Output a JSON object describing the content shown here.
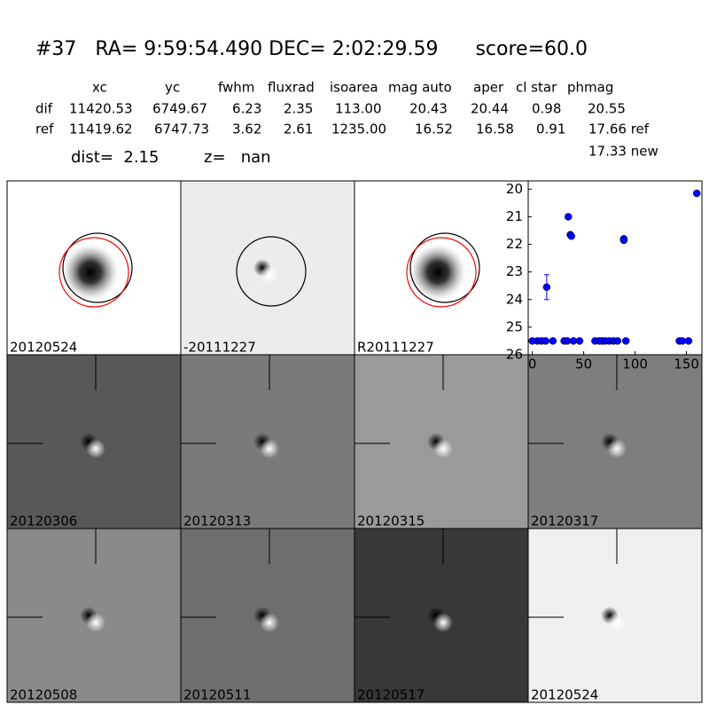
{
  "header": {
    "title": "#37   RA= 9:59:54.490 DEC= 2:02:29.59      score=60.0",
    "columns": [
      "xc",
      "yc",
      "fwhm",
      "fluxrad",
      "isoarea",
      "mag auto",
      "aper",
      "cl star",
      "phmag"
    ],
    "rows": [
      {
        "label": "dif",
        "cells": [
          "11420.53",
          "6749.67",
          "6.23",
          "2.35",
          "113.00",
          "20.43",
          "20.44",
          "0.98",
          "20.55"
        ]
      },
      {
        "label": "ref",
        "cells": [
          "11419.62",
          "6747.73",
          "3.62",
          "2.61",
          "1235.00",
          "16.52",
          "16.58",
          "0.91",
          "17.66 ref"
        ]
      }
    ],
    "extra": "17.33 new",
    "dist": "dist=  2.15",
    "z": "z=   nan"
  },
  "panels": [
    {
      "label": "20120524"
    },
    {
      "label": "-20111227"
    },
    {
      "label": "R20111227"
    },
    {
      "label": "20120306"
    },
    {
      "label": "20120313"
    },
    {
      "label": "20120315"
    },
    {
      "label": "20120317"
    },
    {
      "label": "20120508"
    },
    {
      "label": "20120511"
    },
    {
      "label": "20120517"
    },
    {
      "label": "20120524",
      "color": "#ff0000"
    }
  ],
  "chart_data": {
    "type": "scatter",
    "x": [
      0,
      5,
      9,
      13,
      14,
      20,
      31,
      34,
      35,
      37,
      38,
      40,
      46,
      61,
      65,
      68,
      71,
      75,
      79,
      83,
      89,
      89,
      91,
      143,
      146,
      152,
      160
    ],
    "values": [
      25.5,
      25.5,
      25.5,
      25.5,
      23.55,
      25.5,
      25.5,
      25.5,
      21.0,
      21.65,
      21.7,
      25.5,
      25.5,
      25.5,
      25.5,
      25.5,
      25.5,
      25.5,
      25.5,
      25.5,
      21.8,
      21.85,
      25.5,
      25.5,
      25.5,
      25.5,
      20.15
    ],
    "errors": [
      null,
      null,
      null,
      null,
      0.45,
      null,
      null,
      null,
      null,
      null,
      null,
      null,
      null,
      null,
      null,
      null,
      null,
      null,
      null,
      null,
      null,
      null,
      null,
      null,
      null,
      null,
      null
    ],
    "color": "#0000ff",
    "xlim": [
      -4,
      165
    ],
    "ylim": [
      26,
      19.7
    ],
    "xticks": [
      0,
      50,
      100,
      150
    ],
    "yticks": [
      20,
      21,
      22,
      23,
      24,
      25,
      26
    ]
  }
}
